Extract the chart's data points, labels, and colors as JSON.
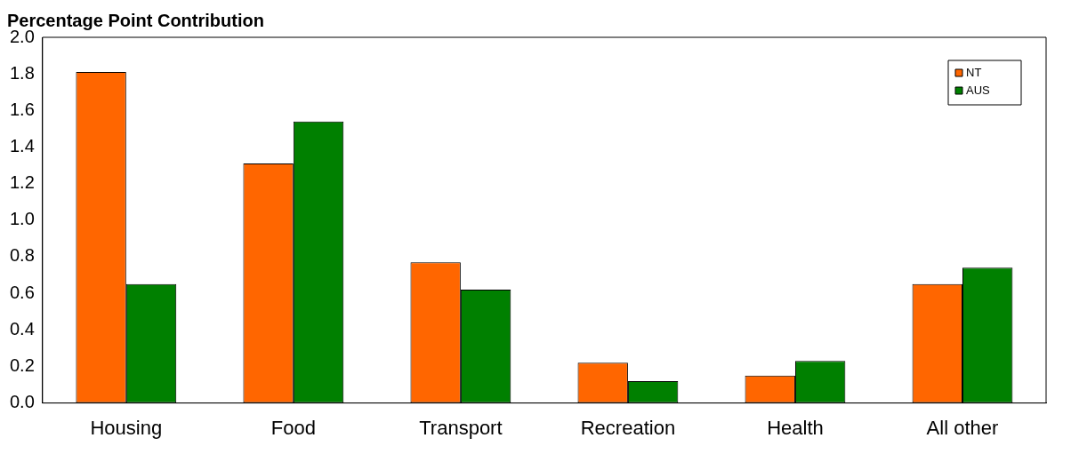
{
  "chart_data": {
    "type": "bar",
    "ylabel": "Percentage Point Contribution",
    "categories": [
      "Housing",
      "Food",
      "Transport",
      "Recreation",
      "Health",
      "All other"
    ],
    "series": [
      {
        "name": "NT",
        "color": "#ff6600",
        "values": [
          1.81,
          1.31,
          0.77,
          0.22,
          0.15,
          0.65
        ]
      },
      {
        "name": "AUS",
        "color": "#008000",
        "values": [
          0.65,
          1.54,
          0.62,
          0.12,
          0.23,
          0.74
        ]
      }
    ],
    "ylim": [
      0,
      2
    ],
    "yticks": [
      {
        "value": 0,
        "label": "0.0"
      },
      {
        "value": 0.2,
        "label": "0.2"
      },
      {
        "value": 0.4,
        "label": "0.4"
      },
      {
        "value": 0.6,
        "label": "0.6"
      },
      {
        "value": 0.8,
        "label": "0.8"
      },
      {
        "value": 1,
        "label": "1.0"
      },
      {
        "value": 1.2,
        "label": "1.2"
      },
      {
        "value": 1.4,
        "label": "1.4"
      },
      {
        "value": 1.6,
        "label": "1.6"
      },
      {
        "value": 1.8,
        "label": "1.8"
      },
      {
        "value": 2,
        "label": "2.0"
      }
    ],
    "grid": false,
    "legend": "top right"
  }
}
